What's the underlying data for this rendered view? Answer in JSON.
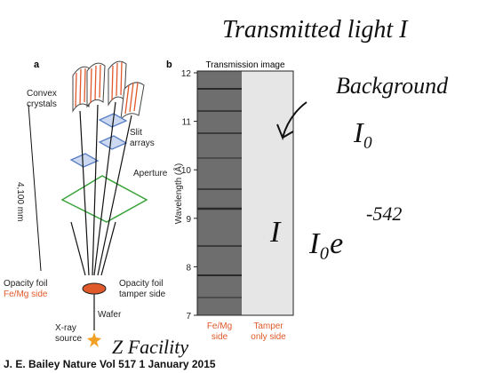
{
  "panel_a": {
    "label": "a",
    "convex_crystals": [
      "Convex",
      "crystals"
    ],
    "slit_arrays": [
      "Slit",
      "arrays"
    ],
    "aperture": "Aperture",
    "distance": "4,100 mm",
    "opacity_foil_left": [
      "Opacity foil",
      "Fe/Mg side"
    ],
    "opacity_foil_right": [
      "Opacity foil",
      "tamper side"
    ],
    "wafer": "Wafer",
    "xray_source": [
      "X-ray",
      "source"
    ]
  },
  "panel_b": {
    "label": "b",
    "title": "Transmission image",
    "y_axis_label": "Wavelength (Å)",
    "ylim": [
      7,
      12
    ],
    "yticks": [
      7,
      8,
      9,
      10,
      11,
      12
    ],
    "bottom_labels": [
      [
        "Fe/Mg",
        "side"
      ],
      [
        "Tamper",
        "only side"
      ]
    ]
  },
  "annotations": {
    "transmitted": "Transmitted light I",
    "background": "Background",
    "background_symbol": "I₀",
    "intensity": "I",
    "formula": "I₀e",
    "exponent": "-542",
    "facility": "Z Facility"
  },
  "caption": "J. E. Bailey Nature Vol 517 1 January 2015"
}
